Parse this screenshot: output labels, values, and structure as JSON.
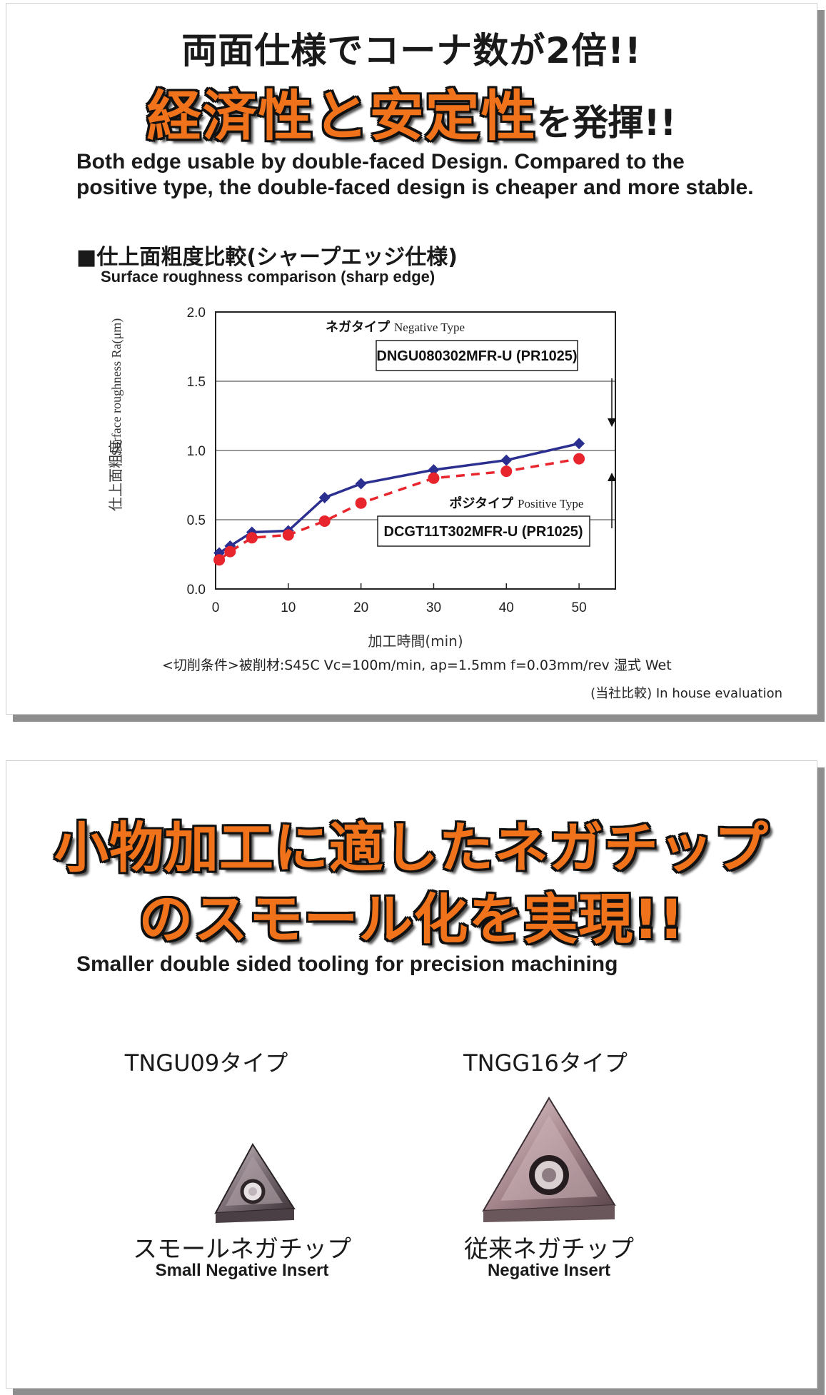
{
  "section1": {
    "headline_line1": "両面仕様でコーナ数が2倍!!",
    "headline_line2_highlight": "経済性と安定性",
    "headline_line2_rest": "を発揮!!",
    "description": "Both edge usable by double-faced Design. Compared to the positive type, the double-faced design is cheaper and more stable.",
    "chart_heading_jp": "■仕上面粗度比較(シャープエッジ仕様)",
    "chart_heading_en": "Surface roughness comparison (sharp edge)",
    "conditions": "<切削条件>被削材:S45C Vc=100m/min, ap=1.5mm f=0.03mm/rev 湿式 Wet",
    "evaluation": "(当社比較) In house evaluation"
  },
  "chart_data": {
    "type": "line",
    "title": "",
    "xlabel": "加工時間(min)",
    "ylabel_jp": "仕上面粗度",
    "ylabel_en": "Surface roughness Ra(μm)",
    "xlim": [
      0,
      55
    ],
    "ylim": [
      0,
      2.0
    ],
    "xticks": [
      "0",
      "10",
      "20",
      "30",
      "40",
      "50"
    ],
    "yticks": [
      "0.0",
      "0.5",
      "1.0",
      "1.5",
      "2.0"
    ],
    "grid": "horizontal",
    "series": [
      {
        "name_jp": "ネガタイプ",
        "name_en": "Negative Type",
        "product": "DNGU080302MFR-U (PR1025)",
        "color": "#2b2f8f",
        "marker": "diamond",
        "line": "solid",
        "x": [
          0.5,
          2,
          5,
          10,
          15,
          20,
          30,
          40,
          50
        ],
        "y": [
          0.26,
          0.31,
          0.41,
          0.42,
          0.66,
          0.76,
          0.86,
          0.93,
          1.05
        ]
      },
      {
        "name_jp": "ポジタイプ",
        "name_en": "Positive Type",
        "product": "DCGT11T302MFR-U (PR1025)",
        "color": "#e8242c",
        "marker": "circle",
        "line": "dashed",
        "x": [
          0.5,
          2,
          5,
          10,
          15,
          20,
          30,
          40,
          50
        ],
        "y": [
          0.21,
          0.27,
          0.37,
          0.39,
          0.49,
          0.62,
          0.8,
          0.85,
          0.94
        ]
      }
    ]
  },
  "section2": {
    "headline_line1": "小物加工に適したネガチップ",
    "headline_line2": "のスモール化を実現!!",
    "subtitle": "Smaller double sided tooling for precision machining",
    "insert_small": {
      "type_label": "TNGU09タイプ",
      "name_jp": "スモールネガチップ",
      "name_en": "Small Negative Insert"
    },
    "insert_large": {
      "type_label": "TNGG16タイプ",
      "name_jp": "従来ネガチップ",
      "name_en": "Negative Insert"
    }
  }
}
